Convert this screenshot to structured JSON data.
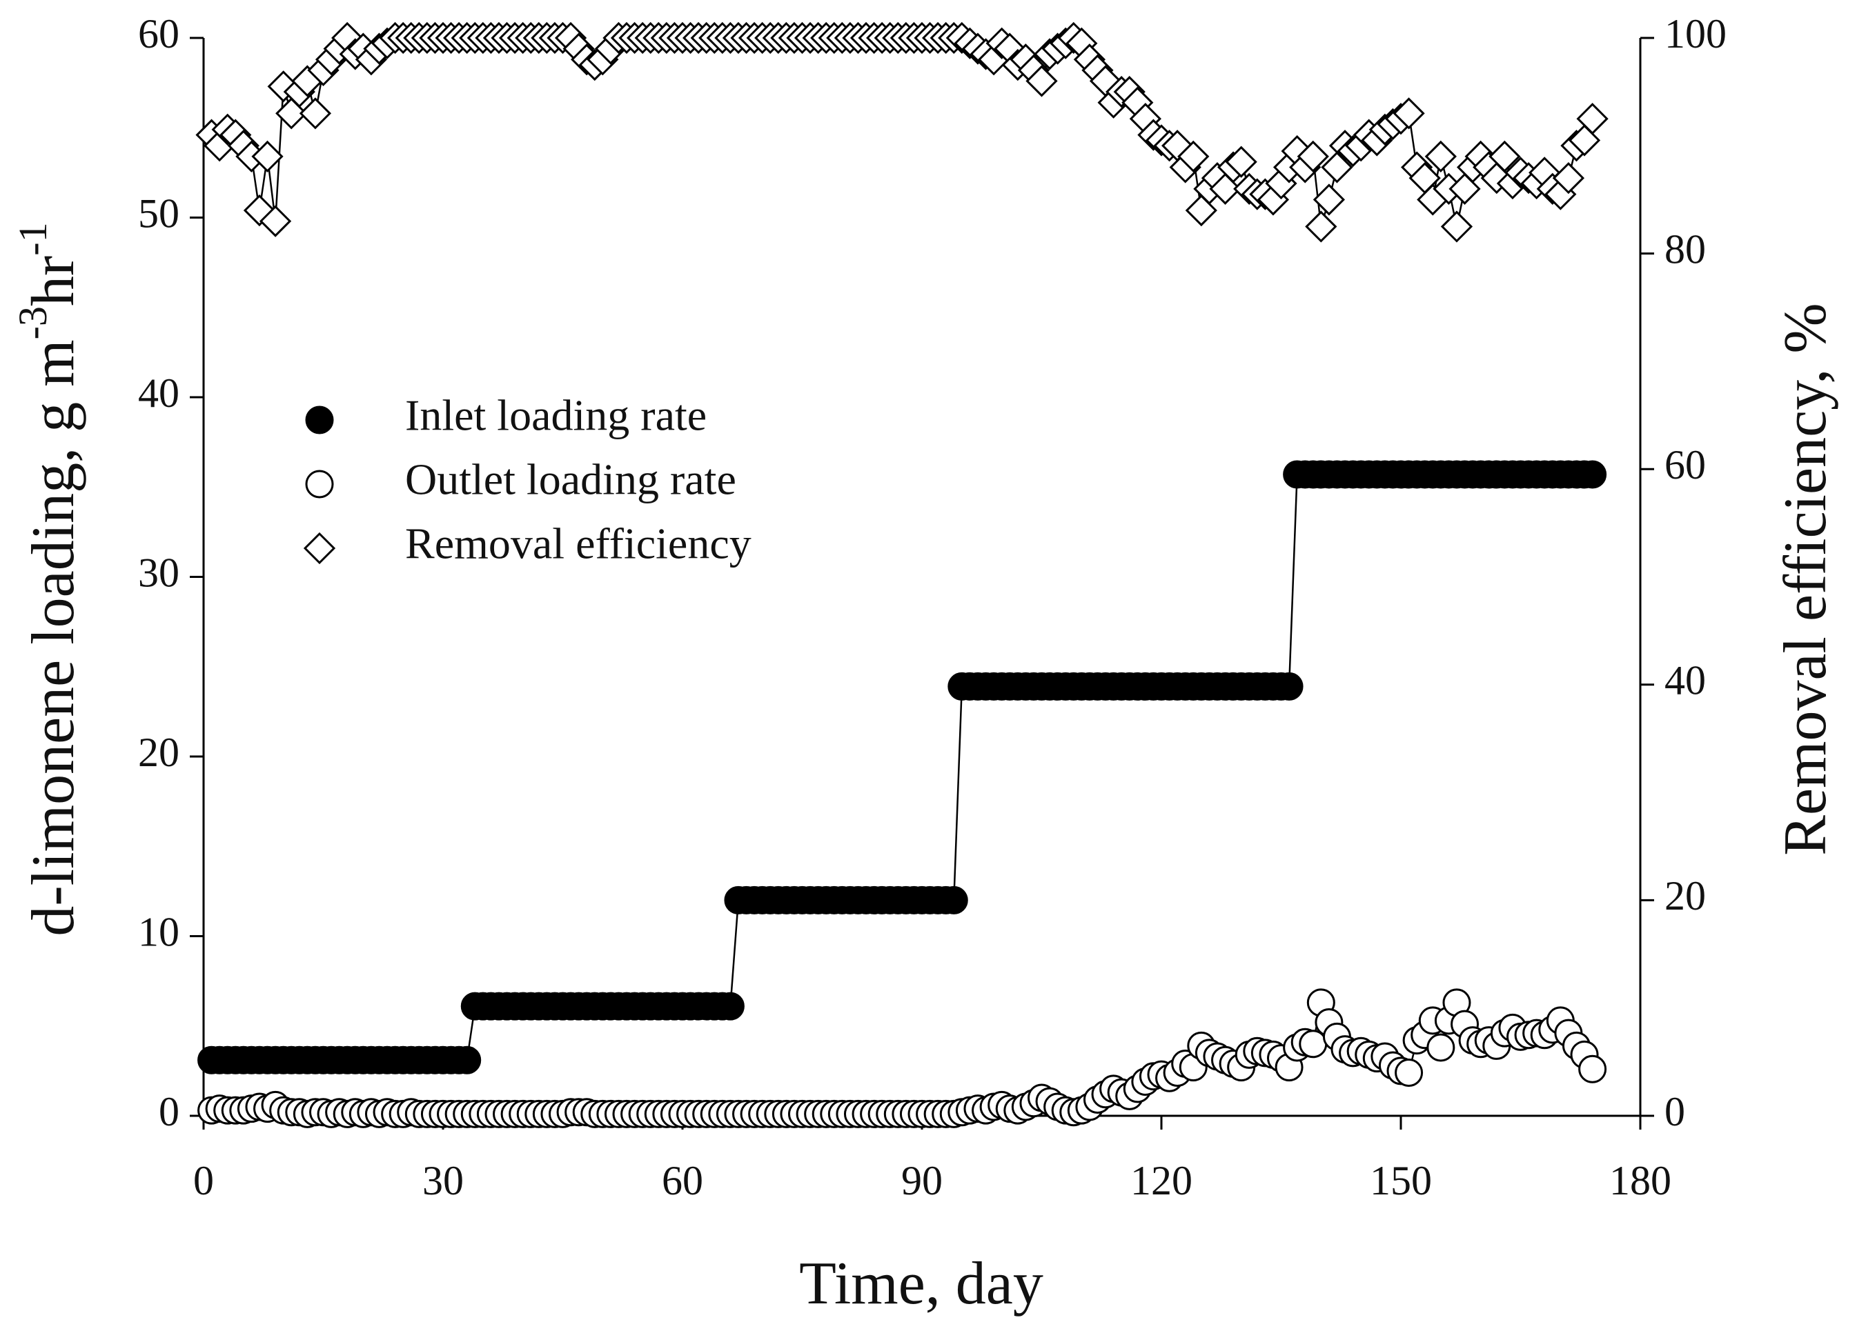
{
  "chart_data": {
    "type": "line",
    "xlabel": "Time, day",
    "ylabel": [
      "d-limonene loading, g m",
      "-3",
      "hr",
      "-1"
    ],
    "y2label": "Removal efficiency, %",
    "xlim": [
      0,
      180
    ],
    "xticks": [
      0,
      30,
      60,
      90,
      120,
      150,
      180
    ],
    "ylim": [
      0,
      60
    ],
    "yticks": [
      0,
      10,
      20,
      30,
      40,
      50,
      60
    ],
    "y2lim": [
      0,
      100
    ],
    "y2ticks": [
      0,
      20,
      40,
      60,
      80,
      100
    ],
    "legend": "upper left",
    "x": [
      1,
      2,
      3,
      4,
      5,
      6,
      7,
      8,
      9,
      10,
      11,
      12,
      13,
      14,
      15,
      16,
      17,
      18,
      19,
      20,
      21,
      22,
      23,
      24,
      25,
      26,
      27,
      28,
      29,
      30,
      31,
      32,
      33,
      34,
      35,
      36,
      37,
      38,
      39,
      40,
      41,
      42,
      43,
      44,
      45,
      46,
      47,
      48,
      49,
      50,
      51,
      52,
      53,
      54,
      55,
      56,
      57,
      58,
      59,
      60,
      61,
      62,
      63,
      64,
      65,
      66,
      67,
      68,
      69,
      70,
      71,
      72,
      73,
      74,
      75,
      76,
      77,
      78,
      79,
      80,
      81,
      82,
      83,
      84,
      85,
      86,
      87,
      88,
      89,
      90,
      91,
      92,
      93,
      94,
      95,
      96,
      97,
      98,
      99,
      100,
      101,
      102,
      103,
      104,
      105,
      106,
      107,
      108,
      109,
      110,
      111,
      112,
      113,
      114,
      115,
      116,
      117,
      118,
      119,
      120,
      121,
      122,
      123,
      124,
      125,
      126,
      127,
      128,
      129,
      130,
      131,
      132,
      133,
      134,
      135,
      136,
      137,
      138,
      139,
      140,
      141,
      142,
      143,
      144,
      145,
      146,
      147,
      148,
      149,
      150,
      151,
      152,
      153,
      154,
      155,
      156,
      157,
      158,
      159,
      160,
      161,
      162,
      163,
      164,
      165,
      166,
      167,
      168,
      169,
      170,
      171,
      172,
      173,
      174
    ],
    "series": [
      {
        "name": "Inlet loading rate",
        "color": "#000000",
        "marker": "filled-circle",
        "values": [
          3.1,
          3.1,
          3.1,
          3.1,
          3.1,
          3.1,
          3.1,
          3.1,
          3.1,
          3.1,
          3.1,
          3.1,
          3.1,
          3.1,
          3.1,
          3.1,
          3.1,
          3.1,
          3.1,
          3.1,
          3.1,
          3.1,
          3.1,
          3.1,
          3.1,
          3.1,
          3.1,
          3.1,
          3.1,
          3.1,
          3.1,
          3.1,
          3.1,
          6.1,
          6.1,
          6.1,
          6.1,
          6.1,
          6.1,
          6.1,
          6.1,
          6.1,
          6.1,
          6.1,
          6.1,
          6.1,
          6.1,
          6.1,
          6.1,
          6.1,
          6.1,
          6.1,
          6.1,
          6.1,
          6.1,
          6.1,
          6.1,
          6.1,
          6.1,
          6.1,
          6.1,
          6.1,
          6.1,
          6.1,
          6.1,
          6.1,
          12,
          12,
          12,
          12,
          12,
          12,
          12,
          12,
          12,
          12,
          12,
          12,
          12,
          12,
          12,
          12,
          12,
          12,
          12,
          12,
          12,
          12,
          12,
          12,
          12,
          12,
          12,
          12,
          23.9,
          23.9,
          23.9,
          23.9,
          23.9,
          23.9,
          23.9,
          23.9,
          23.9,
          23.9,
          23.9,
          23.9,
          23.9,
          23.9,
          23.9,
          23.9,
          23.9,
          23.9,
          23.9,
          23.9,
          23.9,
          23.9,
          23.9,
          23.9,
          23.9,
          23.9,
          23.9,
          23.9,
          23.9,
          23.9,
          23.9,
          23.9,
          23.9,
          23.9,
          23.9,
          23.9,
          23.9,
          23.9,
          23.9,
          23.9,
          23.9,
          23.9,
          35.7,
          35.7,
          35.7,
          35.7,
          35.7,
          35.7,
          35.7,
          35.7,
          35.7,
          35.7,
          35.7,
          35.7,
          35.7,
          35.7,
          35.7,
          35.7,
          35.7,
          35.7,
          35.7,
          35.7,
          35.7,
          35.7,
          35.7,
          35.7,
          35.7,
          35.7,
          35.7,
          35.7,
          35.7,
          35.7,
          35.7,
          35.7,
          35.7,
          35.7,
          35.7,
          35.7,
          35.7,
          35.7
        ]
      },
      {
        "name": "Outlet loading rate",
        "color": "#000000",
        "marker": "open-circle",
        "values": [
          0.3,
          0.4,
          0.3,
          0.3,
          0.3,
          0.4,
          0.5,
          0.4,
          0.6,
          0.3,
          0.2,
          0.2,
          0.1,
          0.2,
          0.2,
          0.1,
          0.2,
          0.1,
          0.2,
          0.1,
          0.2,
          0.1,
          0.2,
          0.1,
          0.1,
          0.2,
          0.1,
          0.1,
          0.1,
          0.1,
          0.1,
          0.1,
          0.1,
          0.1,
          0.1,
          0.1,
          0.1,
          0.1,
          0.1,
          0.1,
          0.1,
          0.1,
          0.1,
          0.1,
          0.1,
          0.2,
          0.2,
          0.2,
          0.1,
          0.1,
          0.1,
          0.1,
          0.1,
          0.1,
          0.1,
          0.1,
          0.1,
          0.1,
          0.1,
          0.1,
          0.1,
          0.1,
          0.1,
          0.1,
          0.1,
          0.1,
          0.1,
          0.1,
          0.1,
          0.1,
          0.1,
          0.1,
          0.1,
          0.1,
          0.1,
          0.1,
          0.1,
          0.1,
          0.1,
          0.1,
          0.1,
          0.1,
          0.1,
          0.1,
          0.1,
          0.1,
          0.1,
          0.1,
          0.1,
          0.1,
          0.1,
          0.1,
          0.1,
          0.1,
          0.2,
          0.3,
          0.4,
          0.3,
          0.5,
          0.6,
          0.4,
          0.3,
          0.5,
          0.7,
          1.0,
          0.8,
          0.5,
          0.3,
          0.2,
          0.3,
          0.5,
          0.9,
          1.2,
          1.5,
          1.3,
          1.1,
          1.5,
          1.9,
          2.2,
          2.3,
          2.1,
          2.4,
          2.9,
          2.7,
          3.9,
          3.5,
          3.3,
          3.1,
          2.9,
          2.7,
          3.4,
          3.6,
          3.5,
          3.4,
          3.2,
          2.7,
          3.8,
          4.1,
          4.0,
          6.3,
          5.2,
          4.4,
          3.7,
          3.5,
          3.6,
          3.4,
          3.2,
          3.3,
          2.8,
          2.5,
          2.4,
          4.2,
          4.5,
          5.3,
          3.8,
          5.3,
          6.3,
          5.1,
          4.2,
          4.0,
          4.2,
          3.9,
          4.6,
          4.9,
          4.4,
          4.5,
          4.6,
          4.5,
          4.8,
          5.3,
          4.6,
          3.9,
          3.4,
          2.6
        ]
      },
      {
        "name": "Removal efficiency",
        "color": "#000000",
        "marker": "open-diamond",
        "axis": "y2",
        "values": [
          91,
          90,
          91.5,
          91,
          90,
          89,
          84,
          89,
          83,
          95.5,
          93,
          95,
          96,
          93,
          97,
          98,
          99,
          100,
          98.5,
          99,
          98,
          99,
          99.5,
          100,
          100,
          100,
          100,
          100,
          100,
          100,
          100,
          100,
          100,
          100,
          100,
          100,
          100,
          100,
          100,
          100,
          100,
          100,
          100,
          100,
          100,
          100,
          99,
          98,
          97.5,
          98,
          99,
          100,
          100,
          100,
          100,
          100,
          100,
          100,
          100,
          100,
          100,
          100,
          100,
          100,
          100,
          100,
          100,
          100,
          100,
          100,
          100,
          100,
          100,
          100,
          100,
          100,
          100,
          100,
          100,
          100,
          100,
          100,
          100,
          100,
          100,
          100,
          100,
          100,
          100,
          100,
          100,
          100,
          100,
          100,
          100,
          99.5,
          99,
          98.5,
          98,
          99.5,
          99,
          97.5,
          98,
          97,
          96,
          98.5,
          99,
          99.5,
          100,
          99.5,
          98,
          97,
          96,
          94,
          95,
          95,
          94,
          92.5,
          91,
          90.5,
          90,
          90,
          88,
          89,
          84,
          86,
          87,
          86,
          88,
          88.5,
          86,
          85.5,
          85.5,
          85,
          86.5,
          88,
          89.5,
          88,
          89,
          82.5,
          85,
          88,
          90,
          89.5,
          90,
          91,
          90.5,
          91.5,
          92,
          92.5,
          93,
          88,
          87,
          85,
          89,
          86,
          82.5,
          86,
          88,
          89,
          88,
          87,
          89,
          86.5,
          87.5,
          87,
          86.5,
          87.5,
          86,
          85.5,
          87,
          90,
          90.5,
          92.5
        ]
      }
    ]
  }
}
